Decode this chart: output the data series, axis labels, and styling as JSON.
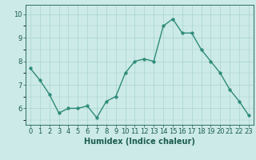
{
  "x": [
    0,
    1,
    2,
    3,
    4,
    5,
    6,
    7,
    8,
    9,
    10,
    11,
    12,
    13,
    14,
    15,
    16,
    17,
    18,
    19,
    20,
    21,
    22,
    23
  ],
  "y": [
    7.7,
    7.2,
    6.6,
    5.8,
    6.0,
    6.0,
    6.1,
    5.6,
    6.3,
    6.5,
    7.5,
    8.0,
    8.1,
    8.0,
    9.5,
    9.8,
    9.2,
    9.2,
    8.5,
    8.0,
    7.5,
    6.8,
    6.3,
    5.7
  ],
  "line_color": "#2e8b7a",
  "marker_color": "#2e8b7a",
  "bg_color": "#cceae7",
  "grid_color_major": "#aad4d0",
  "xlabel": "Humidex (Indice chaleur)",
  "xlim": [
    -0.5,
    23.5
  ],
  "ylim": [
    5.3,
    10.4
  ],
  "yticks": [
    6,
    7,
    8,
    9,
    10
  ],
  "xticks": [
    0,
    1,
    2,
    3,
    4,
    5,
    6,
    7,
    8,
    9,
    10,
    11,
    12,
    13,
    14,
    15,
    16,
    17,
    18,
    19,
    20,
    21,
    22,
    23
  ],
  "label_fontsize": 7,
  "tick_fontsize": 6,
  "line_width": 1.0,
  "marker_size": 2.5
}
